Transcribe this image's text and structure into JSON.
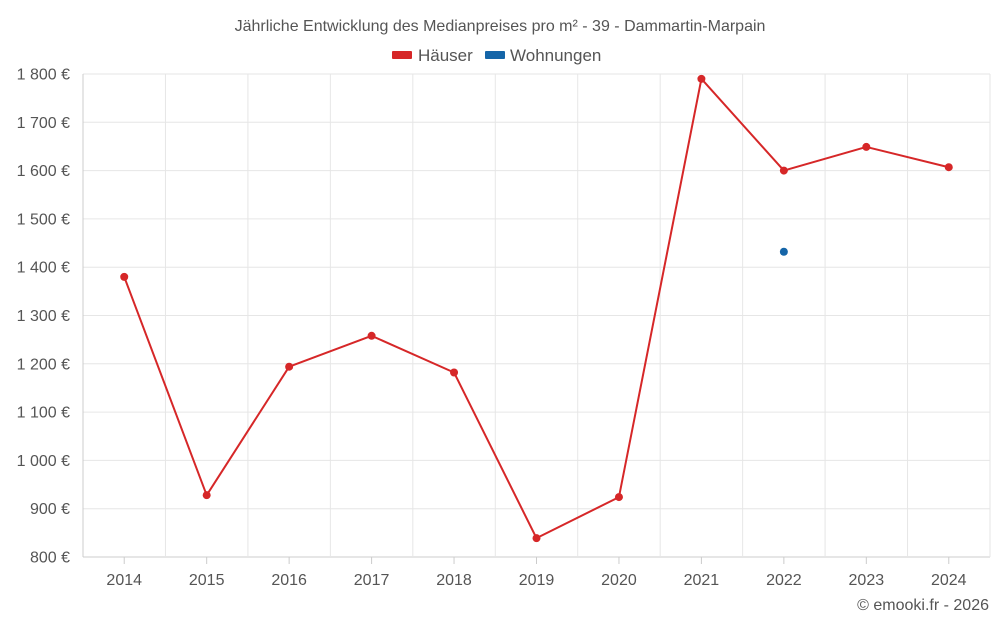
{
  "chart_data": {
    "type": "line",
    "title": "Jährliche Entwicklung des Medianpreises pro m² - 39 - Dammartin-Marpain",
    "xlabel": "",
    "ylabel": "",
    "categories": [
      "2014",
      "2015",
      "2016",
      "2017",
      "2018",
      "2019",
      "2020",
      "2021",
      "2022",
      "2023",
      "2024"
    ],
    "ylim": [
      800,
      1800
    ],
    "yticks": [
      800,
      900,
      1000,
      1100,
      1200,
      1300,
      1400,
      1500,
      1600,
      1700,
      1800
    ],
    "ytick_labels": [
      "800 €",
      "900 €",
      "1 000 €",
      "1 100 €",
      "1 200 €",
      "1 300 €",
      "1 400 €",
      "1 500 €",
      "1 600 €",
      "1 700 €",
      "1 800 €"
    ],
    "grid": true,
    "legend_position": "top-center",
    "series": [
      {
        "name": "Häuser",
        "color": "#d62728",
        "values": [
          1380,
          928,
          1194,
          1258,
          1182,
          839,
          924,
          1790,
          1600,
          1649,
          1607
        ]
      },
      {
        "name": "Wohnungen",
        "color": "#1565a8",
        "values": [
          null,
          null,
          null,
          null,
          null,
          null,
          null,
          null,
          1432,
          null,
          null
        ]
      }
    ]
  },
  "credit": "© emooki.fr - 2026"
}
